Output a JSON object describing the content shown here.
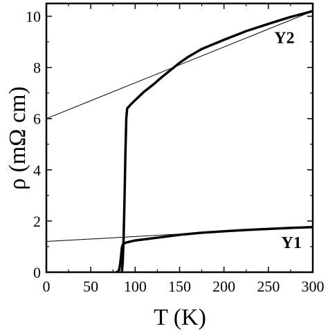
{
  "chart_data": {
    "type": "line",
    "xlabel": "T (K)",
    "ylabel": "ρ (mΩ cm)",
    "xlim": [
      0,
      300
    ],
    "ylim": [
      0,
      10.5
    ],
    "xticks": [
      0,
      50,
      100,
      150,
      200,
      250,
      300
    ],
    "yticks": [
      0,
      2,
      4,
      6,
      8,
      10
    ],
    "grid": false,
    "series": [
      {
        "name": "Y2",
        "points": [
          [
            85,
            0
          ],
          [
            86,
            0.4
          ],
          [
            87,
            1.3
          ],
          [
            88,
            2.8
          ],
          [
            89,
            4.6
          ],
          [
            90,
            6.0
          ],
          [
            91,
            6.4
          ],
          [
            95,
            6.55
          ],
          [
            100,
            6.72
          ],
          [
            110,
            7.05
          ],
          [
            120,
            7.32
          ],
          [
            130,
            7.62
          ],
          [
            140,
            7.9
          ],
          [
            150,
            8.18
          ],
          [
            160,
            8.42
          ],
          [
            175,
            8.72
          ],
          [
            200,
            9.08
          ],
          [
            225,
            9.42
          ],
          [
            250,
            9.7
          ],
          [
            275,
            9.97
          ],
          [
            300,
            10.2
          ]
        ]
      },
      {
        "name": "Y1",
        "points": [
          [
            79,
            0
          ],
          [
            81,
            0.04
          ],
          [
            82,
            0.1
          ],
          [
            83,
            0.3
          ],
          [
            84,
            0.6
          ],
          [
            85,
            0.95
          ],
          [
            86,
            1.08
          ],
          [
            88,
            1.13
          ],
          [
            90,
            1.16
          ],
          [
            95,
            1.2
          ],
          [
            100,
            1.24
          ],
          [
            125,
            1.35
          ],
          [
            150,
            1.46
          ],
          [
            175,
            1.54
          ],
          [
            200,
            1.6
          ],
          [
            225,
            1.65
          ],
          [
            250,
            1.69
          ],
          [
            275,
            1.73
          ],
          [
            300,
            1.76
          ]
        ]
      }
    ],
    "fit_lines": [
      {
        "x": [
          0,
          300
        ],
        "y": [
          6.0,
          10.2
        ]
      },
      {
        "x": [
          0,
          300
        ],
        "y": [
          1.2,
          1.78
        ]
      }
    ],
    "annotations": [
      {
        "text": "Y2",
        "x": 268,
        "y": 8.95
      },
      {
        "text": "Y1",
        "x": 276,
        "y": 0.95
      }
    ]
  }
}
